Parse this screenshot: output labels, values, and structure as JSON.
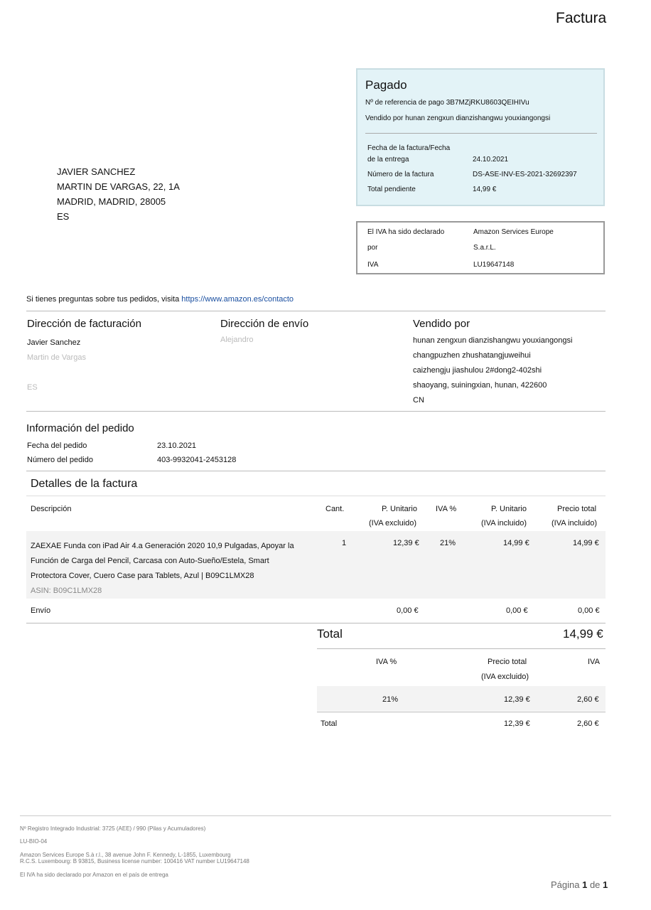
{
  "title": "Factura",
  "paid": {
    "status": "Pagado",
    "ref": "Nº de referencia de pago 3B7MZjRKU8603QEIHIVu",
    "seller": "Vendido por hunan zengxun dianzishangwu youxiangongsi",
    "date_label_1": "Fecha de la factura/Fecha",
    "date_label_2": "de la entrega",
    "date": "24.10.2021",
    "number_label": "Número de la factura",
    "number": "DS-ASE-INV-ES-2021-32692397",
    "pending_label": "Total pendiente",
    "pending": "14,99 €"
  },
  "vat_box": {
    "label_1": "El IVA ha sido declarado",
    "label_2": "por",
    "value_1": "Amazon Services Europe",
    "value_2": "S.a.r.L.",
    "iva_label": "IVA",
    "iva_value": "LU19647148"
  },
  "customer": [
    "JAVIER SANCHEZ",
    "MARTIN DE VARGAS, 22, 1A",
    "MADRID, MADRID, 28005",
    "ES"
  ],
  "contact": {
    "text": "Si tienes preguntas sobre tus pedidos, visita ",
    "link": "https://www.amazon.es/contacto"
  },
  "billing": {
    "heading": "Dirección de facturación",
    "lines": [
      "Javier Sanchez",
      "Martin de Vargas",
      "",
      "ES"
    ]
  },
  "shipping": {
    "heading": "Dirección de envío",
    "lines": [
      "Alejandro"
    ]
  },
  "sold_by": {
    "heading": "Vendido por",
    "lines": [
      "hunan zengxun dianzishangwu youxiangongsi",
      "changpuzhen zhushatangjuweihui",
      "caizhengju jiashulou 2#dong2-402shi",
      "shaoyang, suiningxian, hunan, 422600",
      "CN"
    ]
  },
  "order": {
    "heading": "Información del pedido",
    "date_label": "Fecha del pedido",
    "date": "23.10.2021",
    "number_label": "Número del pedido",
    "number": "403-9932041-2453128"
  },
  "details": {
    "heading": "Detalles de la factura",
    "cols": {
      "desc": "Descripción",
      "qty": "Cant.",
      "unit_ex_1": "P. Unitario",
      "unit_ex_2": "(IVA excluido)",
      "vat": "IVA %",
      "unit_in_1": "P. Unitario",
      "unit_in_2": "(IVA incluido)",
      "total_1": "Precio total",
      "total_2": "(IVA incluido)"
    },
    "item": {
      "lines": [
        "ZAEXAE Funda con iPad Air 4.a Generación 2020 10,9 Pulgadas, Apoyar la",
        "Función de Carga del Pencil, Carcasa con Auto-Sueño/Estela, Smart",
        "Protectora Cover, Cuero Case para Tablets, Azul | B09C1LMX28"
      ],
      "asin": "ASIN: B09C1LMX28",
      "qty": "1",
      "unit_ex": "12,39 €",
      "vat": "21%",
      "unit_in": "14,99 €",
      "total": "14,99 €"
    },
    "shipping": {
      "label": "Envío",
      "unit_ex": "0,00 €",
      "unit_in": "0,00 €",
      "total": "0,00 €"
    },
    "total_label": "Total",
    "total": "14,99 €"
  },
  "vat_summary": {
    "col_vat": "IVA %",
    "col_total_1": "Precio total",
    "col_total_2": "(IVA excluido)",
    "col_iva": "IVA",
    "row": {
      "vat": "21%",
      "total": "12,39 €",
      "iva": "2,60 €"
    },
    "total_label": "Total",
    "total": "12,39 €",
    "total_iva": "2,60 €"
  },
  "footer": [
    "Nº Registro Integrado Industrial: 3725 (AEE) / 990 (Pilas y Acumuladores)",
    "LU-BIO-04",
    "Amazon Services Europe S.à r.l., 38 avenue John F. Kennedy, L-1855, Luxembourg",
    "R.C.S. Luxembourg: B 93815, Business license number: 100416 VAT number LU19647148",
    "El IVA ha sido declarado por Amazon en el país de entrega"
  ],
  "page": {
    "prefix": "Página ",
    "current": "1",
    "mid": " de ",
    "total": "1"
  }
}
